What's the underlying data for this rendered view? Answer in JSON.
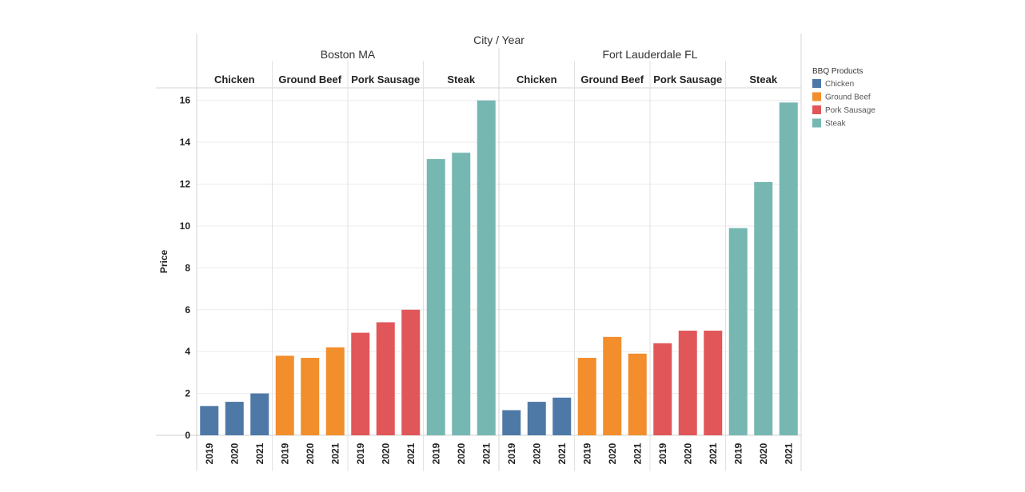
{
  "chart_data": {
    "type": "bar",
    "title": "",
    "column_header": "City / Year",
    "ylabel": "Price",
    "ylim": [
      0,
      16.6
    ],
    "yticks": [
      0,
      2,
      4,
      6,
      8,
      10,
      12,
      14,
      16
    ],
    "grid": true,
    "legend_position": "top-right",
    "legend": {
      "title": "BBQ Products",
      "items": [
        {
          "name": "Chicken",
          "color": "#4e79a7"
        },
        {
          "name": "Ground Beef",
          "color": "#f28e2b"
        },
        {
          "name": "Pork Sausage",
          "color": "#e15759"
        },
        {
          "name": "Steak",
          "color": "#76b7b2"
        }
      ]
    },
    "years": [
      "2019",
      "2020",
      "2021"
    ],
    "cities": [
      {
        "name": "Boston MA",
        "products": [
          {
            "name": "Chicken",
            "values": [
              1.4,
              1.6,
              2.0
            ]
          },
          {
            "name": "Ground Beef",
            "values": [
              3.8,
              3.7,
              4.2
            ]
          },
          {
            "name": "Pork Sausage",
            "values": [
              4.9,
              5.4,
              6.0
            ]
          },
          {
            "name": "Steak",
            "values": [
              13.2,
              13.5,
              16.0
            ]
          }
        ]
      },
      {
        "name": "Fort Lauderdale FL",
        "products": [
          {
            "name": "Chicken",
            "values": [
              1.2,
              1.6,
              1.8
            ]
          },
          {
            "name": "Ground Beef",
            "values": [
              3.7,
              4.7,
              3.9
            ]
          },
          {
            "name": "Pork Sausage",
            "values": [
              4.4,
              5.0,
              5.0
            ]
          },
          {
            "name": "Steak",
            "values": [
              9.9,
              12.1,
              15.9
            ]
          }
        ]
      }
    ]
  }
}
